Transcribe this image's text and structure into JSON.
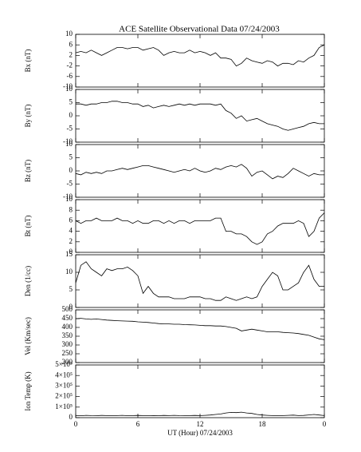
{
  "chart_data": {
    "type": "line",
    "title": "ACE Satellite Observational Data   07/24/2003",
    "xlabel": "UT (Hour)   07/24/2003",
    "xlim": [
      0,
      24
    ],
    "xticks": [
      0,
      6,
      12,
      18,
      {
        "value": 24,
        "label": "0"
      }
    ],
    "x": [
      0,
      0.5,
      1,
      1.5,
      2,
      2.5,
      3,
      3.5,
      4,
      4.5,
      5,
      5.5,
      6,
      6.5,
      7,
      7.5,
      8,
      8.5,
      9,
      9.5,
      10,
      10.5,
      11,
      11.5,
      12,
      12.5,
      13,
      13.5,
      14,
      14.5,
      15,
      15.5,
      16,
      16.5,
      17,
      17.5,
      18,
      18.5,
      19,
      19.5,
      20,
      20.5,
      21,
      21.5,
      22,
      22.5,
      23,
      23.5,
      24
    ],
    "panels": [
      {
        "ylabel": "Bx (nT)",
        "ylim": [
          -10,
          10
        ],
        "yticks": [
          -10,
          -6,
          -2,
          2,
          6,
          10
        ],
        "values": [
          3,
          3.5,
          3,
          4,
          3,
          2,
          3,
          4,
          5,
          5,
          4.5,
          5,
          5,
          4,
          4.5,
          5,
          4,
          2,
          3,
          3.5,
          3,
          3,
          4,
          3,
          3.5,
          3,
          2,
          3,
          1,
          1,
          0.5,
          -2,
          -1,
          1,
          0,
          -0.5,
          -1,
          0,
          -0.5,
          -2,
          -1,
          -1,
          -1.5,
          0,
          -0.5,
          1,
          2,
          5,
          6
        ]
      },
      {
        "ylabel": "By (nT)",
        "ylim": [
          -10,
          10
        ],
        "yticks": [
          -10,
          -5,
          0,
          5,
          10
        ],
        "values": [
          4.5,
          4.5,
          4,
          4.5,
          4.5,
          5,
          5,
          5.5,
          5.5,
          5,
          5,
          4.5,
          4.5,
          3.5,
          4,
          3,
          3.5,
          4,
          3.5,
          4,
          4.5,
          4,
          4.5,
          4,
          4.5,
          4.5,
          4.5,
          4,
          4.5,
          2,
          1,
          -1,
          0,
          -2,
          -1.5,
          -1,
          -2,
          -3,
          -3.5,
          -4,
          -5,
          -5.5,
          -5,
          -4.5,
          -4,
          -3,
          -2.5,
          -3,
          -3
        ]
      },
      {
        "ylabel": "Bz (nT)",
        "ylim": [
          -10,
          10
        ],
        "yticks": [
          -10,
          -5,
          0,
          5,
          10
        ],
        "values": [
          -1,
          -1.5,
          -0.5,
          -1,
          -0.5,
          -1,
          0,
          0,
          0.5,
          1,
          0.5,
          1,
          1.5,
          2,
          2,
          1.5,
          1,
          0.5,
          0,
          -0.5,
          0,
          0.5,
          0,
          1,
          0,
          -0.5,
          0,
          1,
          0.5,
          1.5,
          2,
          1.5,
          2.5,
          1,
          -2,
          -0.5,
          0,
          -1.5,
          -3,
          -2,
          -2.5,
          -1,
          1,
          0,
          -1,
          -2,
          -1,
          -1.5,
          -1.5
        ]
      },
      {
        "ylabel": "Bt (nT)",
        "ylim": [
          0,
          10
        ],
        "yticks": [
          0,
          2,
          4,
          6,
          8,
          10
        ],
        "values": [
          6,
          5.5,
          6,
          6,
          6.5,
          6,
          6,
          6,
          6.5,
          6,
          6,
          5.5,
          6,
          5.5,
          5.5,
          6,
          6,
          5.5,
          6,
          5.5,
          6,
          6,
          5.5,
          6,
          6,
          6,
          6,
          6.5,
          6.5,
          4,
          4,
          3.5,
          3.5,
          3,
          2,
          1.5,
          2,
          3.5,
          4,
          5,
          5.5,
          5.5,
          5.5,
          6,
          5.5,
          3,
          4,
          6.5,
          7.5
        ]
      },
      {
        "ylabel": "Den (1/cc)",
        "ylim": [
          0,
          15
        ],
        "yticks": [
          0,
          5,
          10,
          15
        ],
        "values": [
          7,
          12,
          13,
          11,
          10,
          9,
          11,
          10.5,
          11,
          11,
          11.5,
          10.5,
          9,
          4,
          6,
          4,
          3,
          3,
          3,
          2.5,
          2.5,
          2.5,
          3,
          3,
          3,
          2.5,
          2.5,
          2,
          2,
          3,
          2.5,
          2,
          2.5,
          3,
          2.5,
          3,
          6,
          8,
          10,
          9,
          5,
          5,
          6,
          7,
          10,
          12,
          8,
          6,
          6
        ]
      },
      {
        "ylabel": "Vel (Km/sec)",
        "ylim": [
          200,
          500
        ],
        "yticks": [
          200,
          250,
          300,
          350,
          400,
          450,
          500
        ],
        "values": [
          450,
          452,
          448,
          446,
          448,
          445,
          442,
          440,
          438,
          437,
          436,
          435,
          432,
          430,
          428,
          425,
          422,
          420,
          420,
          418,
          418,
          416,
          415,
          414,
          412,
          410,
          410,
          408,
          408,
          405,
          400,
          395,
          380,
          385,
          390,
          385,
          380,
          375,
          375,
          375,
          372,
          370,
          368,
          365,
          360,
          355,
          345,
          335,
          330
        ]
      },
      {
        "ylabel": "Ion Temp (K)",
        "ylim": [
          0,
          500000
        ],
        "yticks": [
          0,
          {
            "value": 100000,
            "label": "1×10⁵"
          },
          {
            "value": 200000,
            "label": "2×10⁵"
          },
          {
            "value": 300000,
            "label": "3×10⁵"
          },
          {
            "value": 400000,
            "label": "4×10⁵"
          },
          {
            "value": 500000,
            "label": "5×10⁵"
          }
        ],
        "values": [
          20000,
          18000,
          22000,
          20000,
          19000,
          21000,
          20000,
          18000,
          20000,
          22000,
          19000,
          20000,
          21000,
          20000,
          18000,
          20000,
          19000,
          21000,
          20000,
          22000,
          20000,
          19000,
          20000,
          21000,
          20000,
          22000,
          25000,
          30000,
          35000,
          45000,
          50000,
          48000,
          52000,
          45000,
          40000,
          30000,
          25000,
          22000,
          20000,
          18000,
          20000,
          22000,
          24000,
          20000,
          21000,
          26000,
          30000,
          25000,
          20000
        ]
      }
    ]
  }
}
